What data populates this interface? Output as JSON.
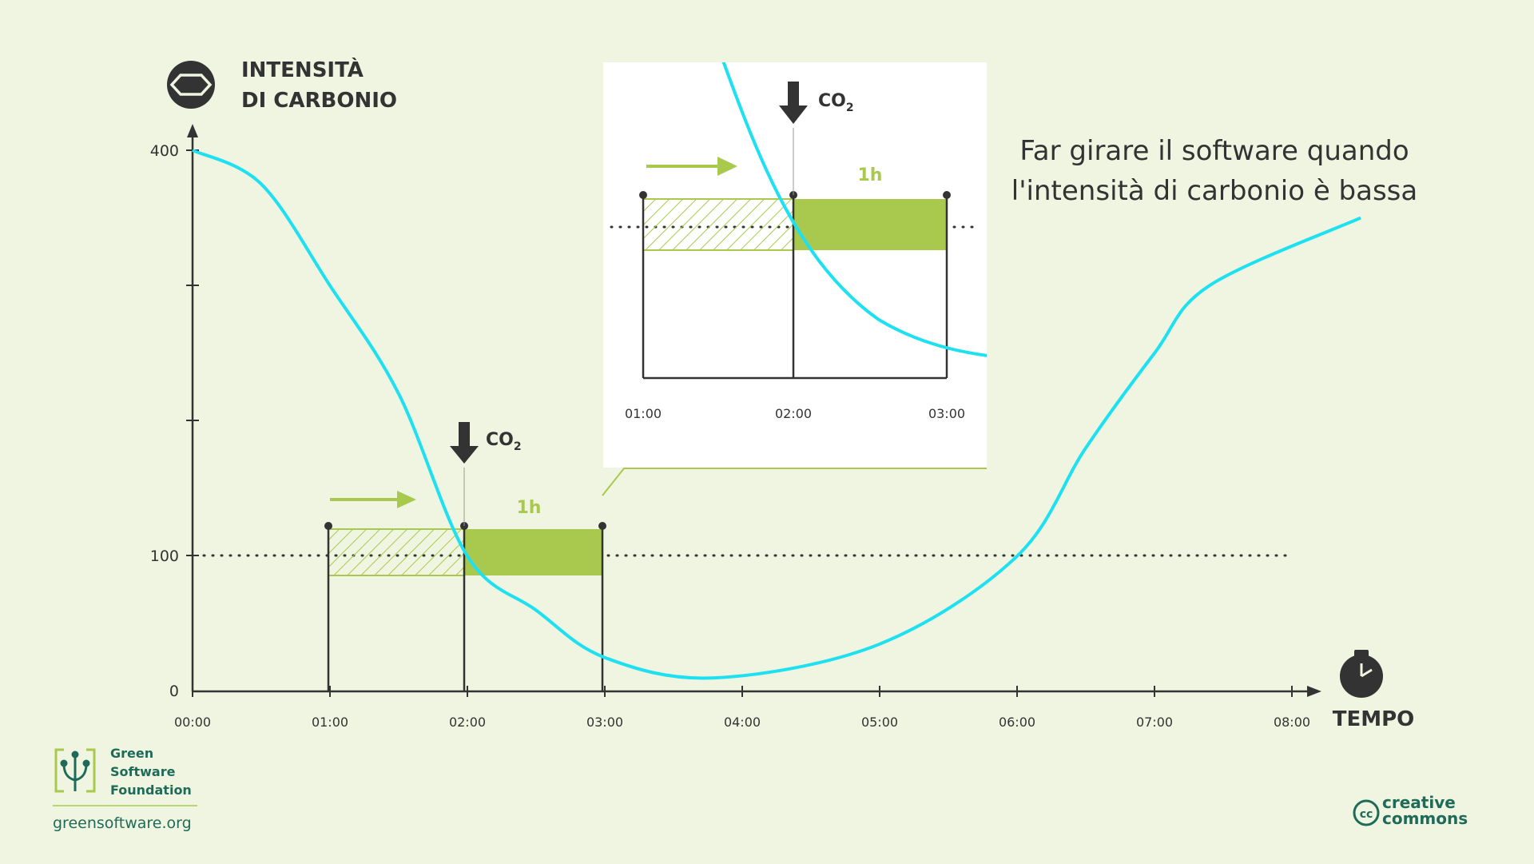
{
  "colors": {
    "background": "#eff5e0",
    "curve": "#1de0f0",
    "green": "#a9c94e",
    "dark": "#333333",
    "brand": "#1f6b5a"
  },
  "header": {
    "title_line1": "INTENSITÀ",
    "title_line2": "DI CARBONIO",
    "icon": "hexagon-icon"
  },
  "axes": {
    "y_ticks": [
      "400",
      "100",
      "0"
    ],
    "x_ticks": [
      "00:00",
      "01:00",
      "02:00",
      "03:00",
      "04:00",
      "05:00",
      "06:00",
      "07:00",
      "08:00"
    ],
    "x_label": "TEMPO",
    "x_icon": "stopwatch-icon"
  },
  "chart_data": {
    "type": "line",
    "x_unit": "hour",
    "y_unit": "carbon intensity",
    "ylim": [
      0,
      400
    ],
    "xlim": [
      "00:00",
      "08:00"
    ],
    "threshold": 100,
    "curve": [
      {
        "x": 0,
        "y": 400
      },
      {
        "x": 0.5,
        "y": 375
      },
      {
        "x": 1.0,
        "y": 300
      },
      {
        "x": 1.5,
        "y": 220
      },
      {
        "x": 2.0,
        "y": 100
      },
      {
        "x": 2.5,
        "y": 60
      },
      {
        "x": 3.0,
        "y": 25
      },
      {
        "x": 3.8,
        "y": 10
      },
      {
        "x": 5.0,
        "y": 35
      },
      {
        "x": 6.0,
        "y": 100
      },
      {
        "x": 6.5,
        "y": 180
      },
      {
        "x": 7.0,
        "y": 250
      },
      {
        "x": 7.4,
        "y": 300
      },
      {
        "x": 8.5,
        "y": 350
      }
    ],
    "job": {
      "duration_label": "1h",
      "original_start": "01:00",
      "shifted_start": "02:00",
      "shifted_end": "03:00"
    },
    "marker_label": "CO",
    "marker_subscript": "2"
  },
  "inset": {
    "x_ticks": [
      "01:00",
      "02:00",
      "03:00"
    ],
    "duration_label": "1h",
    "marker_label": "CO",
    "marker_subscript": "2"
  },
  "message": {
    "line1": "Far girare il software quando",
    "line2": "l'intensità di carbonio è bassa"
  },
  "footer": {
    "org_line1": "Green",
    "org_line2": "Software",
    "org_line3": "Foundation",
    "url": "greensoftware.org",
    "license_line1": "creative",
    "license_line2": "commons",
    "license_badge": "cc"
  }
}
